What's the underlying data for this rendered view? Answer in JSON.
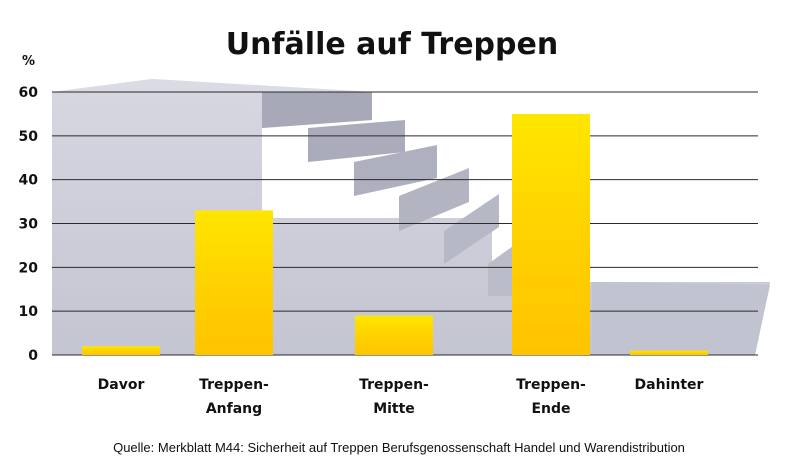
{
  "chart_data": {
    "type": "bar",
    "title": "Unfälle auf Treppen",
    "ylabel": "%",
    "xlabel": "",
    "ylim": [
      0,
      60
    ],
    "yticks": [
      0,
      10,
      20,
      30,
      40,
      50,
      60
    ],
    "grid": true,
    "categories": [
      [
        "Davor"
      ],
      [
        "Treppen-",
        "Anfang"
      ],
      [
        "Treppen-",
        "Mitte"
      ],
      [
        "Treppen-",
        "Ende"
      ],
      [
        "Dahinter"
      ]
    ],
    "values": [
      2,
      33,
      9,
      55,
      1
    ],
    "bar_color": "#FFD000",
    "bar_color_light": "#FFE600",
    "bar_color_dark": "#FFC400",
    "background_color": "#CBCCD8",
    "source": "Quelle: Merkblatt M44: Sicherheit auf Treppen Berufsgenossenschaft Handel und Warendistribution"
  }
}
